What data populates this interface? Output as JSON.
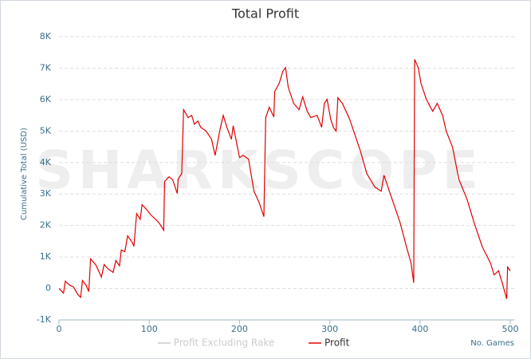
{
  "chart_data": {
    "type": "line",
    "title": "Total Profit",
    "watermark": "SHARKSCOPE",
    "ylabel": "Cumulative Total (USD)",
    "xlabel": "No. Games",
    "x": [
      0,
      5,
      7,
      12,
      16,
      21,
      24,
      26,
      30,
      33,
      35,
      41,
      47,
      50,
      54,
      60,
      63,
      67,
      69,
      73,
      76,
      81,
      83,
      86,
      90,
      92,
      97,
      102,
      107,
      111,
      116,
      117,
      122,
      126,
      131,
      132,
      136,
      138,
      143,
      147,
      150,
      154,
      157,
      163,
      169,
      173,
      178,
      182,
      186,
      191,
      193,
      200,
      204,
      210,
      216,
      222,
      227,
      229,
      233,
      238,
      239,
      244,
      248,
      251,
      254,
      260,
      266,
      270,
      275,
      279,
      286,
      291,
      294,
      297,
      301,
      304,
      307,
      309,
      314,
      322,
      328,
      334,
      341,
      350,
      357,
      360,
      366,
      372,
      378,
      385,
      390,
      393,
      394,
      398,
      401,
      407,
      414,
      419,
      425,
      429,
      436,
      443,
      452,
      460,
      469,
      478,
      482,
      487,
      491,
      496,
      497,
      500
    ],
    "series": [
      {
        "name": "Profit Excluding Rake",
        "color": "#cccccc",
        "visible": false
      },
      {
        "name": "Profit",
        "color": "#e00000",
        "visible": true,
        "values": [
          0,
          -150,
          230,
          100,
          50,
          -200,
          -280,
          250,
          100,
          -100,
          940,
          740,
          360,
          760,
          630,
          510,
          890,
          720,
          1220,
          1170,
          1670,
          1470,
          1340,
          2380,
          2200,
          2660,
          2510,
          2330,
          2200,
          2080,
          1850,
          3400,
          3550,
          3450,
          3020,
          3470,
          3650,
          5680,
          5430,
          5500,
          5220,
          5320,
          5120,
          5000,
          4740,
          4230,
          5000,
          5500,
          5120,
          4740,
          5170,
          4160,
          4230,
          4110,
          3090,
          2710,
          2280,
          5430,
          5760,
          5450,
          6260,
          6520,
          6900,
          7020,
          6390,
          5880,
          5680,
          6090,
          5630,
          5430,
          5500,
          5120,
          5880,
          6010,
          5380,
          5120,
          5000,
          6060,
          5880,
          5380,
          4870,
          4360,
          3650,
          3220,
          3090,
          3600,
          3090,
          2590,
          2080,
          1320,
          810,
          180,
          7280,
          7020,
          6520,
          6010,
          5630,
          5880,
          5500,
          5000,
          4490,
          3470,
          2840,
          2080,
          1320,
          810,
          430,
          560,
          180,
          -330,
          680,
          560
        ]
      }
    ],
    "xlim": [
      0,
      505
    ],
    "ylim": [
      -1000,
      8000
    ],
    "xticks": [
      0,
      100,
      200,
      300,
      400,
      500
    ],
    "yticks": [
      {
        "value": -1000,
        "label": "-1K"
      },
      0,
      {
        "value": 1000,
        "label": "1K"
      },
      {
        "value": 2000,
        "label": "2K"
      },
      {
        "value": 3000,
        "label": "3K"
      },
      {
        "value": 4000,
        "label": "4K"
      },
      {
        "value": 5000,
        "label": "5K"
      },
      {
        "value": 6000,
        "label": "6K"
      },
      {
        "value": 7000,
        "label": "7K"
      },
      {
        "value": 8000,
        "label": "8K"
      }
    ],
    "grid": true
  }
}
